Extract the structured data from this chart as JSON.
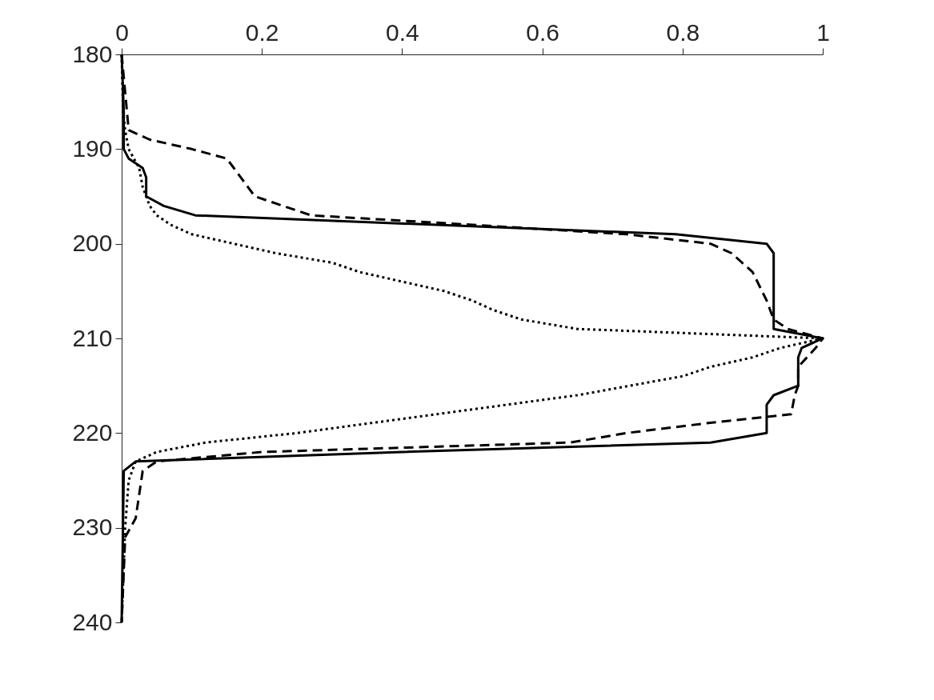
{
  "chart_data": {
    "type": "line",
    "orientation": "horizontal",
    "xlim": [
      0,
      1
    ],
    "xticks": [
      0,
      0.2,
      0.4,
      0.6,
      0.8,
      1
    ],
    "ylim": [
      240,
      180
    ],
    "yticks": [
      180,
      190,
      200,
      210,
      220,
      230,
      240
    ],
    "grid": false,
    "marker": "none",
    "series": [
      {
        "color": "#000000",
        "line_style": "solid",
        "x": [
          180,
          186,
          190,
          191,
          192,
          193,
          195,
          196,
          197,
          199,
          200,
          201,
          209,
          210,
          211,
          212,
          215,
          216,
          217,
          220,
          221,
          222,
          223,
          224,
          240
        ],
        "values": [
          0,
          0.003,
          0.003,
          0.01,
          0.03,
          0.035,
          0.035,
          0.06,
          0.105,
          0.79,
          0.92,
          0.93,
          0.93,
          1.0,
          0.97,
          0.965,
          0.965,
          0.93,
          0.92,
          0.92,
          0.84,
          0.4,
          0.02,
          0.003,
          0
        ]
      },
      {
        "color": "#000000",
        "line_style": "dashed",
        "x": [
          180,
          188,
          189,
          190,
          191,
          192,
          193,
          195,
          196,
          197,
          198,
          199,
          200,
          201,
          203,
          206,
          208,
          209,
          210,
          211,
          213,
          215,
          216,
          218,
          219,
          220,
          221,
          222,
          223,
          224,
          229,
          231,
          240
        ],
        "values": [
          0,
          0.01,
          0.04,
          0.1,
          0.15,
          0.16,
          0.17,
          0.19,
          0.23,
          0.27,
          0.5,
          0.72,
          0.84,
          0.87,
          0.9,
          0.92,
          0.93,
          0.95,
          1.0,
          0.99,
          0.965,
          0.965,
          0.96,
          0.955,
          0.83,
          0.72,
          0.64,
          0.2,
          0.05,
          0.03,
          0.02,
          0.005,
          0
        ]
      },
      {
        "color": "#000000",
        "line_style": "dotted",
        "x": [
          180,
          186,
          188,
          190,
          192,
          194,
          196,
          197,
          198,
          199,
          200,
          201,
          202,
          203,
          204,
          205,
          206,
          207,
          208,
          209,
          210,
          211,
          212,
          213,
          214,
          216,
          218,
          219,
          220,
          221,
          222,
          223,
          225,
          230,
          240
        ],
        "values": [
          0,
          0.002,
          0.005,
          0.01,
          0.025,
          0.03,
          0.04,
          0.05,
          0.07,
          0.1,
          0.16,
          0.22,
          0.3,
          0.34,
          0.4,
          0.46,
          0.5,
          0.53,
          0.57,
          0.65,
          1.0,
          0.94,
          0.9,
          0.84,
          0.8,
          0.65,
          0.45,
          0.35,
          0.25,
          0.12,
          0.05,
          0.02,
          0.01,
          0.005,
          0
        ]
      }
    ]
  }
}
